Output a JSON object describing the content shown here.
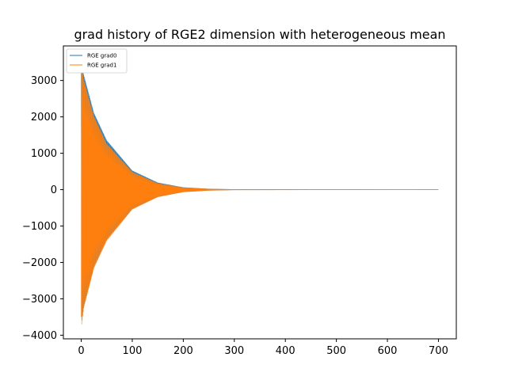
{
  "chart_data": {
    "type": "line",
    "title": "grad history of RGE2 dimension with heterogeneous mean",
    "xlabel": "",
    "ylabel": "",
    "xlim": [
      -35,
      735
    ],
    "ylim": [
      -4100,
      3950
    ],
    "xticks": [
      0,
      100,
      200,
      300,
      400,
      500,
      600,
      700
    ],
    "yticks": [
      -4000,
      -3000,
      -2000,
      -1000,
      0,
      1000,
      2000,
      3000
    ],
    "grid": false,
    "legend_position": "top-left",
    "series": [
      {
        "name": "RGE grad0",
        "color": "#1f77b4",
        "x": [
          0,
          1,
          5,
          25,
          50,
          100,
          150,
          200,
          250,
          300,
          700
        ],
        "envelope_upper": [
          3350,
          3550,
          3150,
          2100,
          1350,
          520,
          190,
          60,
          20,
          6,
          0
        ],
        "envelope_lower": [
          -3350,
          -3600,
          -3200,
          -2100,
          -1350,
          -520,
          -190,
          -60,
          -20,
          -6,
          0
        ]
      },
      {
        "name": "RGE grad1",
        "color": "#ff7f0e",
        "x": [
          0,
          1,
          5,
          25,
          50,
          100,
          150,
          200,
          250,
          300,
          700
        ],
        "envelope_upper": [
          3200,
          3400,
          3000,
          2000,
          1250,
          480,
          170,
          55,
          18,
          5,
          0
        ],
        "envelope_lower": [
          -3500,
          -3700,
          -3250,
          -2150,
          -1400,
          -540,
          -200,
          -65,
          -22,
          -7,
          0
        ]
      }
    ]
  }
}
